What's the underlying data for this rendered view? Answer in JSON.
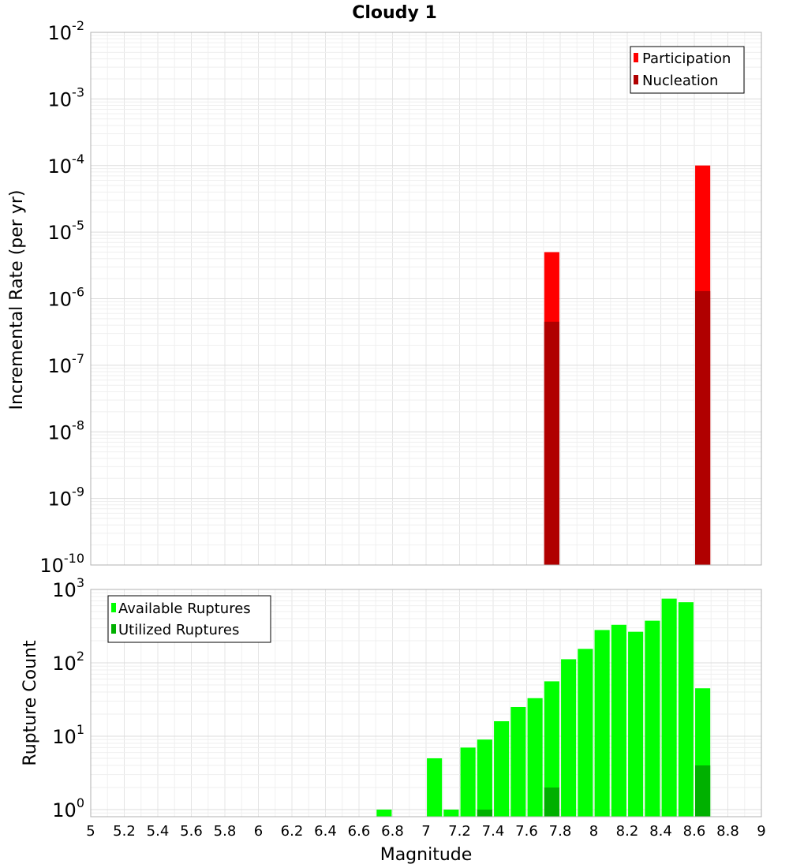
{
  "chart_data": [
    {
      "type": "bar",
      "title": "Cloudy 1",
      "xlabel": "",
      "ylabel": "Incremental Rate (per yr)",
      "yscale": "log",
      "ylim": [
        1e-10,
        0.01
      ],
      "xlim": [
        5,
        9
      ],
      "grid": true,
      "legend_position": "top-right",
      "bar_width": 0.09,
      "series": [
        {
          "name": "Participation",
          "color": "#ff0000",
          "x": [
            7.75,
            8.65
          ],
          "values": [
            5e-06,
            0.0001
          ]
        },
        {
          "name": "Nucleation",
          "color": "#b00000",
          "x": [
            7.75,
            8.65
          ],
          "values": [
            4.5e-07,
            1.3e-06
          ]
        }
      ]
    },
    {
      "type": "bar",
      "xlabel": "Magnitude",
      "ylabel": "Rupture Count",
      "yscale": "log",
      "ylim": [
        0.8,
        1000
      ],
      "xlim": [
        5,
        9
      ],
      "grid": true,
      "legend_position": "top-left",
      "bar_width": 0.09,
      "series": [
        {
          "name": "Available Ruptures",
          "color": "#00ff00",
          "x": [
            6.75,
            7.05,
            7.15,
            7.25,
            7.35,
            7.45,
            7.55,
            7.65,
            7.75,
            7.85,
            7.95,
            8.05,
            8.15,
            8.25,
            8.35,
            8.45,
            8.55,
            8.65
          ],
          "values": [
            1,
            5,
            1,
            7,
            9,
            16,
            25,
            33,
            56,
            112,
            155,
            280,
            330,
            265,
            375,
            750,
            670,
            45
          ]
        },
        {
          "name": "Utilized Ruptures",
          "color": "#00b000",
          "x": [
            7.35,
            7.75,
            8.65
          ],
          "values": [
            1,
            2,
            4
          ]
        }
      ]
    }
  ],
  "x_ticks": [
    "5",
    "5.2",
    "5.4",
    "5.6",
    "5.8",
    "6",
    "6.2",
    "6.4",
    "6.6",
    "6.8",
    "7",
    "7.2",
    "7.4",
    "7.6",
    "7.8",
    "8",
    "8.2",
    "8.4",
    "8.6",
    "8.8",
    "9"
  ],
  "top_y_ticks": [
    {
      "base": "10",
      "exp": "-2",
      "value": 0.01
    },
    {
      "base": "10",
      "exp": "-3",
      "value": 0.001
    },
    {
      "base": "10",
      "exp": "-4",
      "value": 0.0001
    },
    {
      "base": "10",
      "exp": "-5",
      "value": 1e-05
    },
    {
      "base": "10",
      "exp": "-6",
      "value": 1e-06
    },
    {
      "base": "10",
      "exp": "-7",
      "value": 1e-07
    },
    {
      "base": "10",
      "exp": "-8",
      "value": 1e-08
    },
    {
      "base": "10",
      "exp": "-9",
      "value": 1e-09
    },
    {
      "base": "10",
      "exp": "-10",
      "value": 1e-10
    }
  ],
  "bottom_y_ticks": [
    {
      "base": "10",
      "exp": "3",
      "value": 1000
    },
    {
      "base": "10",
      "exp": "2",
      "value": 100
    },
    {
      "base": "10",
      "exp": "1",
      "value": 10
    },
    {
      "base": "10",
      "exp": "0",
      "value": 1
    }
  ]
}
